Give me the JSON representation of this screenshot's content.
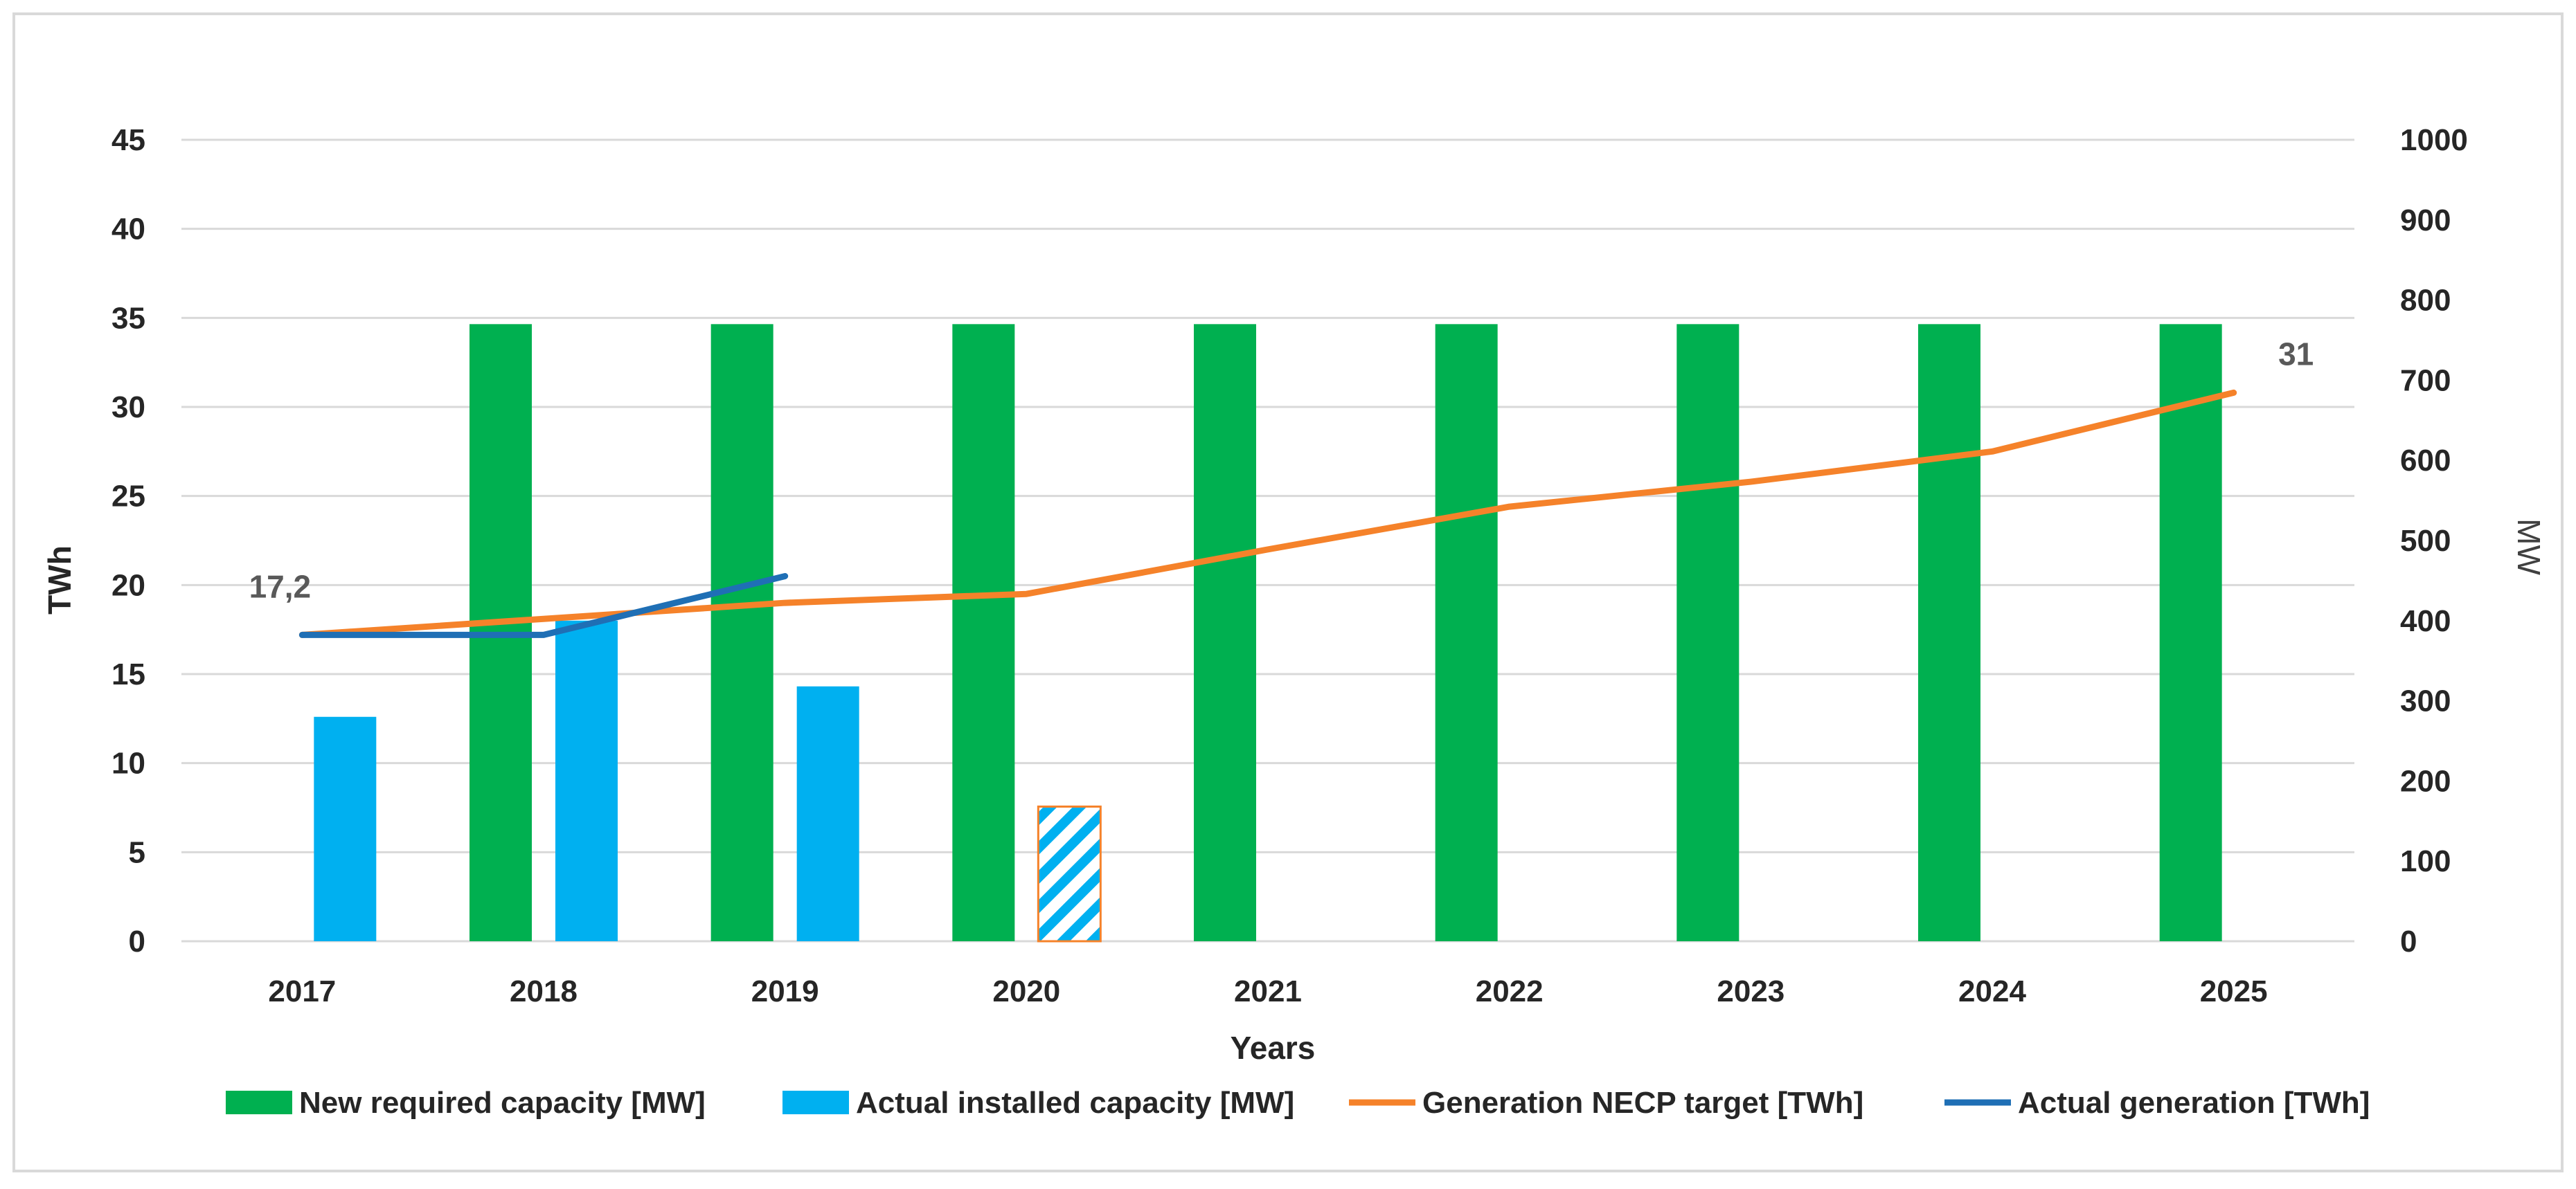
{
  "chart_data": {
    "type": "bar",
    "categories": [
      "2017",
      "2018",
      "2019",
      "2020",
      "2021",
      "2022",
      "2023",
      "2024",
      "2025"
    ],
    "xlabel": "Years",
    "ylabel_left": "TWh",
    "ylabel_right": "MW",
    "ylim_left": [
      0,
      45
    ],
    "ylim_right": [
      0,
      1000
    ],
    "yticks_left": [
      "0",
      "5",
      "10",
      "15",
      "20",
      "25",
      "30",
      "35",
      "40",
      "45"
    ],
    "yticks_right": [
      "0",
      "100",
      "200",
      "300",
      "400",
      "500",
      "600",
      "700",
      "800",
      "900",
      "1000"
    ],
    "grid": true,
    "legend_position": "bottom",
    "series": [
      {
        "name": "New required capacity [MW]",
        "kind": "bar",
        "axis": "right",
        "color": "#00b050",
        "values": [
          null,
          770,
          770,
          770,
          770,
          770,
          770,
          770,
          770
        ]
      },
      {
        "name": "Actual installed capacity  [MW]",
        "kind": "bar",
        "axis": "right",
        "color": "#00b0f0",
        "values": [
          280,
          400,
          318,
          168,
          null,
          null,
          null,
          null,
          null
        ],
        "hatched": [
          false,
          false,
          false,
          true,
          false,
          false,
          false,
          false,
          false
        ]
      },
      {
        "name": "Generation NECP target [TWh]",
        "kind": "line",
        "axis": "left",
        "color": "#f5822a",
        "values": [
          17.2,
          18.1,
          19.0,
          19.5,
          22.0,
          24.4,
          25.8,
          27.5,
          30.8
        ]
      },
      {
        "name": "Actual generation [TWh]",
        "kind": "line",
        "axis": "left",
        "color": "#1f6fb5",
        "points": [
          [
            2017,
            17.2
          ],
          [
            2018,
            17.2
          ],
          [
            2019,
            20.5
          ]
        ]
      }
    ],
    "annotations": [
      {
        "text": "17,2",
        "category": "2017",
        "value": 17.2
      },
      {
        "text": "31",
        "category": "2025",
        "value": 30.8
      }
    ]
  }
}
